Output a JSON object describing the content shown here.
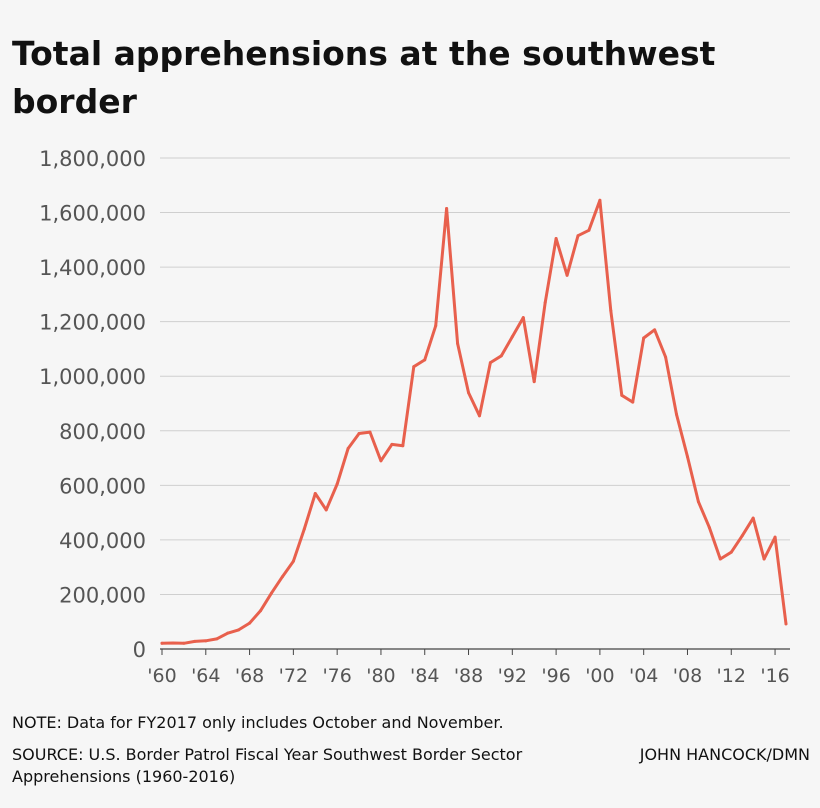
{
  "title": "Total apprehensions at the southwest border",
  "note": "NOTE: Data for FY2017 only includes October and November.",
  "source": "SOURCE: U.S. Border Patrol Fiscal Year Southwest Border Sector Apprehensions (1960-2016)",
  "credit": "JOHN HANCOCK/DMN",
  "colors": {
    "line": "#e8604d",
    "background": "#f6f6f6"
  },
  "chart_data": {
    "type": "line",
    "title": "Total apprehensions at the southwest border",
    "xlabel": "",
    "ylabel": "",
    "xlim": [
      1960,
      2017
    ],
    "ylim": [
      0,
      1800000
    ],
    "grid": true,
    "y_ticks": [
      {
        "value": 0,
        "label": "0"
      },
      {
        "value": 200000,
        "label": "200,000"
      },
      {
        "value": 400000,
        "label": "400,000"
      },
      {
        "value": 600000,
        "label": "600,000"
      },
      {
        "value": 800000,
        "label": "800,000"
      },
      {
        "value": 1000000,
        "label": "1,000,000"
      },
      {
        "value": 1200000,
        "label": "1,200,000"
      },
      {
        "value": 1400000,
        "label": "1,400,000"
      },
      {
        "value": 1600000,
        "label": "1,600,000"
      },
      {
        "value": 1800000,
        "label": "1,800,000"
      }
    ],
    "x_ticks": [
      {
        "value": 1960,
        "label": "'60"
      },
      {
        "value": 1964,
        "label": "'64"
      },
      {
        "value": 1968,
        "label": "'68"
      },
      {
        "value": 1972,
        "label": "'72"
      },
      {
        "value": 1976,
        "label": "'76"
      },
      {
        "value": 1980,
        "label": "'80"
      },
      {
        "value": 1984,
        "label": "'84"
      },
      {
        "value": 1988,
        "label": "'88"
      },
      {
        "value": 1992,
        "label": "'92"
      },
      {
        "value": 1996,
        "label": "'96"
      },
      {
        "value": 2000,
        "label": "'00"
      },
      {
        "value": 2004,
        "label": "'04"
      },
      {
        "value": 2008,
        "label": "'08"
      },
      {
        "value": 2012,
        "label": "'12"
      },
      {
        "value": 2016,
        "label": "'16"
      }
    ],
    "series": [
      {
        "x": [
          1960,
          1961,
          1962,
          1963,
          1964,
          1965,
          1966,
          1967,
          1968,
          1969,
          1970,
          1971,
          1972,
          1973,
          1974,
          1975,
          1976,
          1977,
          1978,
          1979,
          1980,
          1981,
          1982,
          1983,
          1984,
          1985,
          1986,
          1987,
          1988,
          1989,
          1990,
          1991,
          1992,
          1993,
          1994,
          1995,
          1996,
          1997,
          1998,
          1999,
          2000,
          2001,
          2002,
          2003,
          2004,
          2005,
          2006,
          2007,
          2008,
          2009,
          2010,
          2011,
          2012,
          2013,
          2014,
          2015,
          2016,
          2017
        ],
        "y": [
          21000,
          22000,
          21000,
          28000,
          30000,
          37000,
          58000,
          70000,
          95000,
          140000,
          205000,
          265000,
          322000,
          440000,
          570000,
          510000,
          605000,
          735000,
          790000,
          795000,
          690000,
          750000,
          745000,
          1035000,
          1060000,
          1185000,
          1615000,
          1120000,
          940000,
          855000,
          1050000,
          1075000,
          1145000,
          1215000,
          980000,
          1270000,
          1505000,
          1370000,
          1515000,
          1535000,
          1645000,
          1240000,
          930000,
          905000,
          1140000,
          1170000,
          1070000,
          860000,
          705000,
          540000,
          445000,
          330000,
          355000,
          415000,
          480000,
          330000,
          410000,
          92000
        ]
      }
    ]
  }
}
